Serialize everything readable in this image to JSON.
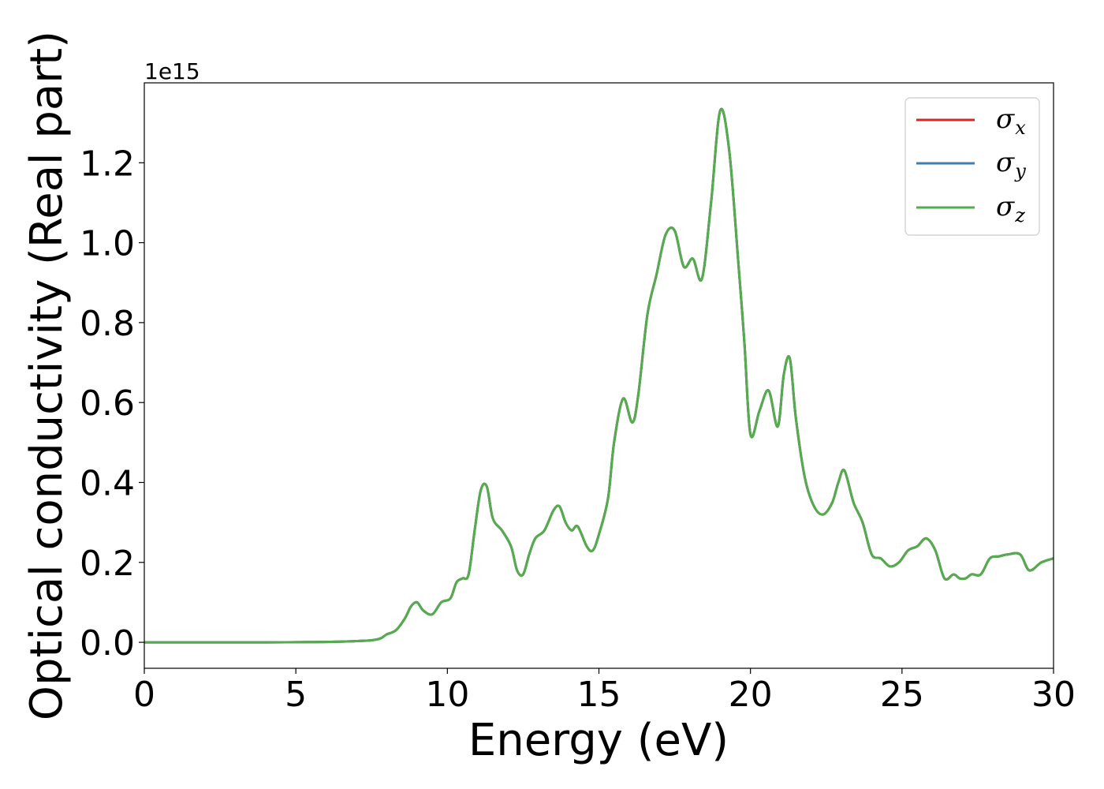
{
  "chart_data": {
    "type": "line",
    "xlabel": "Energy (eV)",
    "ylabel": "Optical conductivity (Real part)",
    "y_offset_label": "1e15",
    "xlim": [
      0,
      30
    ],
    "ylim": [
      -0.065,
      1.4
    ],
    "x_ticks": [
      0,
      5,
      10,
      15,
      20,
      25,
      30
    ],
    "x_tick_labels": [
      "0",
      "5",
      "10",
      "15",
      "20",
      "25",
      "30"
    ],
    "y_ticks": [
      0.0,
      0.2,
      0.4,
      0.6,
      0.8,
      1.0,
      1.2
    ],
    "y_tick_labels": [
      "0.0",
      "0.2",
      "0.4",
      "0.6",
      "0.8",
      "1.0",
      "1.2"
    ],
    "grid": false,
    "legend_position": "top-right",
    "x": [
      0,
      2,
      4,
      6,
      7,
      7.5,
      7.8,
      8.0,
      8.3,
      8.6,
      8.8,
      9.0,
      9.2,
      9.5,
      9.8,
      10.1,
      10.3,
      10.5,
      10.7,
      10.9,
      11.1,
      11.3,
      11.5,
      11.8,
      12.1,
      12.3,
      12.5,
      12.7,
      12.9,
      13.2,
      13.5,
      13.7,
      13.9,
      14.1,
      14.3,
      14.6,
      14.8,
      15.0,
      15.3,
      15.5,
      15.8,
      16.1,
      16.3,
      16.6,
      16.9,
      17.2,
      17.5,
      17.8,
      18.1,
      18.4,
      18.7,
      19.0,
      19.3,
      19.6,
      19.8,
      20.0,
      20.3,
      20.6,
      20.9,
      21.1,
      21.3,
      21.5,
      21.8,
      22.1,
      22.4,
      22.7,
      22.9,
      23.1,
      23.4,
      23.7,
      24.0,
      24.3,
      24.6,
      24.9,
      25.2,
      25.5,
      25.8,
      26.1,
      26.4,
      26.7,
      26.9,
      27.1,
      27.3,
      27.6,
      27.9,
      28.2,
      28.5,
      28.9,
      29.2,
      29.6,
      30.0
    ],
    "series": [
      {
        "name": "σx",
        "color": "#d62728",
        "values": [
          0,
          0,
          0,
          0.001,
          0.003,
          0.005,
          0.01,
          0.02,
          0.03,
          0.06,
          0.09,
          0.1,
          0.08,
          0.07,
          0.1,
          0.11,
          0.15,
          0.16,
          0.17,
          0.28,
          0.38,
          0.39,
          0.31,
          0.28,
          0.24,
          0.18,
          0.17,
          0.22,
          0.26,
          0.28,
          0.33,
          0.34,
          0.3,
          0.28,
          0.29,
          0.24,
          0.23,
          0.27,
          0.36,
          0.5,
          0.61,
          0.55,
          0.62,
          0.82,
          0.92,
          1.02,
          1.03,
          0.94,
          0.96,
          0.91,
          1.1,
          1.33,
          1.23,
          0.95,
          0.75,
          0.52,
          0.58,
          0.63,
          0.54,
          0.67,
          0.71,
          0.56,
          0.41,
          0.34,
          0.32,
          0.35,
          0.4,
          0.43,
          0.35,
          0.3,
          0.22,
          0.21,
          0.19,
          0.2,
          0.23,
          0.24,
          0.26,
          0.23,
          0.16,
          0.17,
          0.16,
          0.16,
          0.17,
          0.17,
          0.21,
          0.215,
          0.22,
          0.22,
          0.18,
          0.2,
          0.21
        ]
      },
      {
        "name": "σy",
        "color": "#3a7fb8",
        "values": [
          0,
          0,
          0,
          0.001,
          0.003,
          0.005,
          0.01,
          0.02,
          0.03,
          0.06,
          0.09,
          0.1,
          0.08,
          0.07,
          0.1,
          0.11,
          0.15,
          0.16,
          0.17,
          0.28,
          0.38,
          0.39,
          0.31,
          0.28,
          0.24,
          0.18,
          0.17,
          0.22,
          0.26,
          0.28,
          0.33,
          0.34,
          0.3,
          0.28,
          0.29,
          0.24,
          0.23,
          0.27,
          0.36,
          0.5,
          0.61,
          0.55,
          0.62,
          0.82,
          0.92,
          1.02,
          1.03,
          0.94,
          0.96,
          0.91,
          1.1,
          1.33,
          1.23,
          0.95,
          0.75,
          0.52,
          0.58,
          0.63,
          0.54,
          0.67,
          0.71,
          0.56,
          0.41,
          0.34,
          0.32,
          0.35,
          0.4,
          0.43,
          0.35,
          0.3,
          0.22,
          0.21,
          0.19,
          0.2,
          0.23,
          0.24,
          0.26,
          0.23,
          0.16,
          0.17,
          0.16,
          0.16,
          0.17,
          0.17,
          0.21,
          0.215,
          0.22,
          0.22,
          0.18,
          0.2,
          0.21
        ]
      },
      {
        "name": "σz",
        "color": "#55ac4d",
        "values": [
          0,
          0,
          0,
          0.001,
          0.003,
          0.005,
          0.01,
          0.02,
          0.03,
          0.06,
          0.09,
          0.1,
          0.08,
          0.07,
          0.1,
          0.11,
          0.15,
          0.16,
          0.17,
          0.28,
          0.38,
          0.39,
          0.31,
          0.28,
          0.24,
          0.18,
          0.17,
          0.22,
          0.26,
          0.28,
          0.33,
          0.34,
          0.3,
          0.28,
          0.29,
          0.24,
          0.23,
          0.27,
          0.36,
          0.5,
          0.61,
          0.55,
          0.62,
          0.82,
          0.92,
          1.02,
          1.03,
          0.94,
          0.96,
          0.91,
          1.1,
          1.33,
          1.23,
          0.95,
          0.75,
          0.52,
          0.58,
          0.63,
          0.54,
          0.67,
          0.71,
          0.56,
          0.41,
          0.34,
          0.32,
          0.35,
          0.4,
          0.43,
          0.35,
          0.3,
          0.22,
          0.21,
          0.19,
          0.2,
          0.23,
          0.24,
          0.26,
          0.23,
          0.16,
          0.17,
          0.16,
          0.16,
          0.17,
          0.17,
          0.21,
          0.215,
          0.22,
          0.22,
          0.18,
          0.2,
          0.21
        ]
      }
    ],
    "legend": [
      {
        "symbol": "σ",
        "subscript": "x",
        "color": "#d62728"
      },
      {
        "symbol": "σ",
        "subscript": "y",
        "color": "#3a7fb8"
      },
      {
        "symbol": "σ",
        "subscript": "z",
        "color": "#55ac4d"
      }
    ]
  }
}
